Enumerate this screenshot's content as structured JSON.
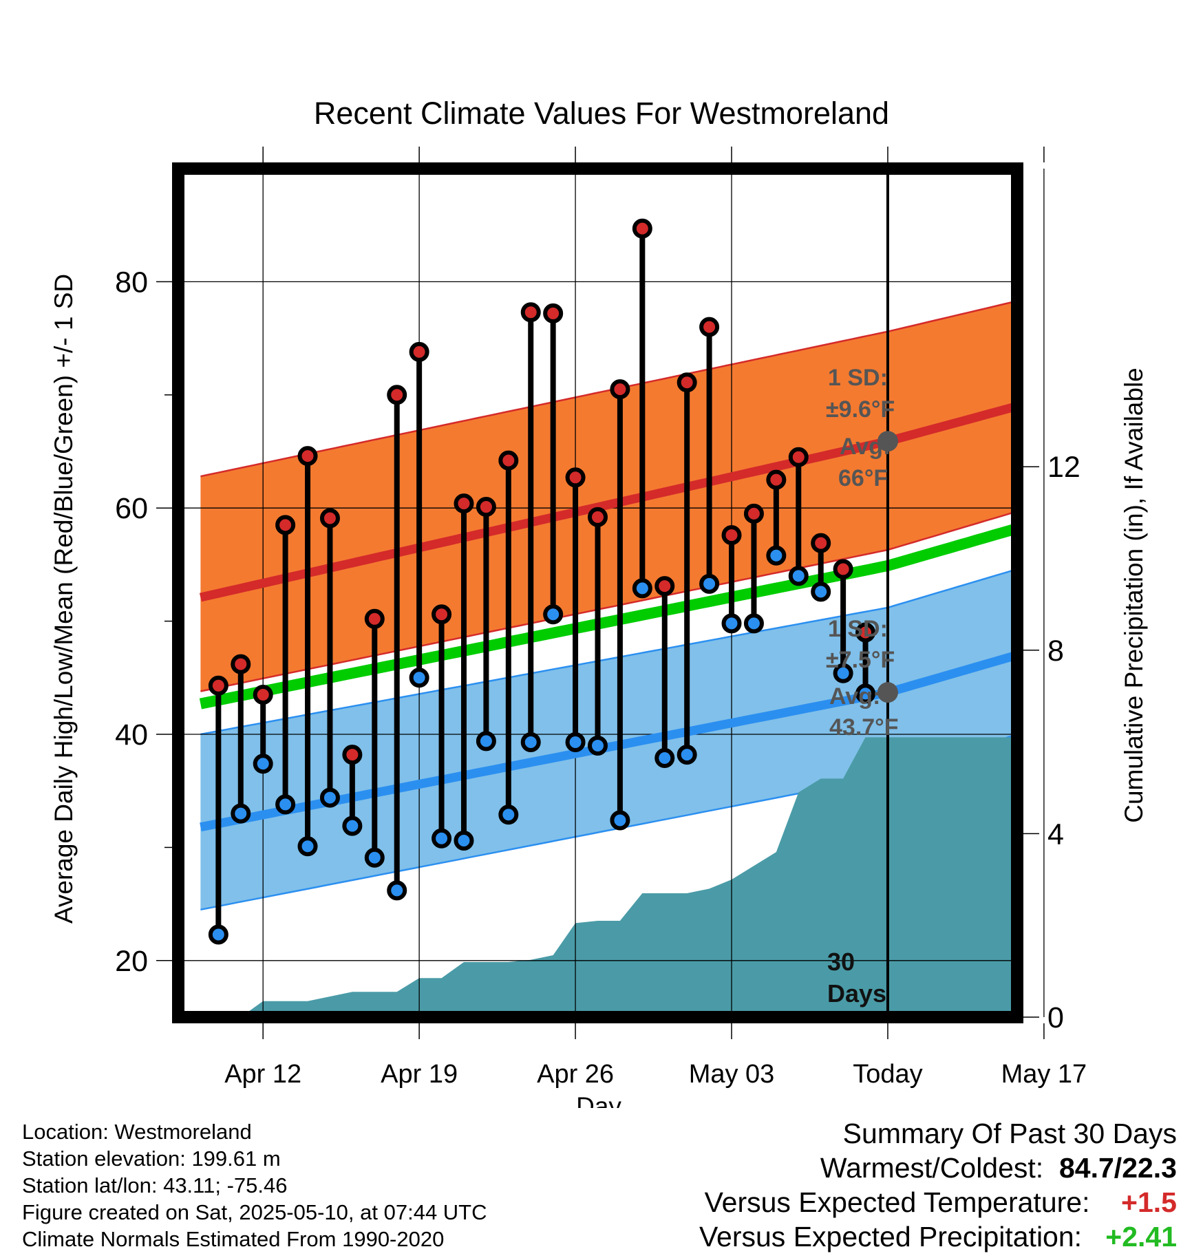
{
  "chart_data": {
    "type": "line",
    "title": "Recent Climate Values For Westmoreland",
    "xlabel": "Day",
    "ylabel": "Average Daily High/Low/Mean (Red/Blue/Green) +/- 1 SD",
    "y2label": "Cumulative Precipitation (in), If Available",
    "ylim": [
      15,
      90
    ],
    "y2lim": [
      0,
      18.5
    ],
    "yticks": [
      20,
      40,
      60,
      80
    ],
    "y2ticks": [
      0,
      4,
      8,
      12
    ],
    "xlim": [
      -3.8,
      33.8
    ],
    "xticks": [
      {
        "label": "Apr 12",
        "day": 0
      },
      {
        "label": "Apr 19",
        "day": 7
      },
      {
        "label": "Apr 26",
        "day": 14
      },
      {
        "label": "May 03",
        "day": 21
      },
      {
        "label": "Today",
        "day": 28
      },
      {
        "label": "May 17",
        "day": 35
      }
    ],
    "grid": true,
    "normals": {
      "high_mean": [
        [
          -2.8,
          52.1
        ],
        [
          28,
          65.9
        ],
        [
          33.8,
          69.0
        ]
      ],
      "high_upper": [
        [
          -2.8,
          62.8
        ],
        [
          28,
          75.6
        ],
        [
          33.8,
          78.3
        ]
      ],
      "high_lower": [
        [
          -2.8,
          43.8
        ],
        [
          28,
          56.3
        ],
        [
          33.8,
          59.7
        ]
      ],
      "low_mean": [
        [
          -2.8,
          31.8
        ],
        [
          28,
          43.7
        ],
        [
          33.8,
          47.0
        ]
      ],
      "low_upper": [
        [
          -2.8,
          40.0
        ],
        [
          28,
          51.2
        ],
        [
          33.8,
          54.6
        ]
      ],
      "low_lower": [
        [
          -2.8,
          24.5
        ],
        [
          28,
          36.3
        ],
        [
          33.8,
          40.0
        ]
      ],
      "mean_line": [
        [
          -2.8,
          42.7
        ],
        [
          28,
          54.9
        ],
        [
          33.8,
          58.2
        ]
      ]
    },
    "daily": {
      "days": [
        -2,
        -1,
        0,
        1,
        2,
        3,
        4,
        5,
        6,
        7,
        8,
        9,
        10,
        11,
        12,
        13,
        14,
        15,
        16,
        17,
        18,
        19,
        20,
        21,
        22,
        23,
        24,
        25,
        26,
        27
      ],
      "highs": [
        44.3,
        46.2,
        43.5,
        58.5,
        64.6,
        59.1,
        38.2,
        50.2,
        70.0,
        73.8,
        50.6,
        60.4,
        60.1,
        64.2,
        77.3,
        77.2,
        62.7,
        59.2,
        70.5,
        84.7,
        53.1,
        71.1,
        76.0,
        57.6,
        59.5,
        62.5,
        64.5,
        56.9,
        54.6,
        49.0
      ],
      "lows": [
        22.3,
        33.0,
        37.4,
        33.8,
        30.1,
        34.4,
        31.9,
        29.1,
        26.2,
        45.0,
        30.8,
        30.6,
        39.4,
        32.9,
        39.3,
        50.6,
        39.3,
        39.0,
        32.4,
        52.9,
        37.9,
        38.2,
        53.3,
        49.8,
        49.8,
        55.8,
        54.0,
        52.6,
        45.4,
        43.6
      ]
    },
    "precip_cumulative": [
      [
        -2.8,
        0
      ],
      [
        -1,
        0
      ],
      [
        0,
        0.35
      ],
      [
        2,
        0.35
      ],
      [
        4,
        0.55
      ],
      [
        6,
        0.55
      ],
      [
        7,
        0.85
      ],
      [
        8,
        0.85
      ],
      [
        9,
        1.2
      ],
      [
        11,
        1.2
      ],
      [
        12,
        1.25
      ],
      [
        13,
        1.35
      ],
      [
        14,
        2.05
      ],
      [
        15,
        2.1
      ],
      [
        16,
        2.1
      ],
      [
        17,
        2.7
      ],
      [
        19,
        2.7
      ],
      [
        20,
        2.8
      ],
      [
        21,
        3.0
      ],
      [
        22,
        3.3
      ],
      [
        23,
        3.6
      ],
      [
        24,
        4.9
      ],
      [
        25,
        5.2
      ],
      [
        26,
        5.2
      ],
      [
        27,
        6.1
      ],
      [
        33.8,
        6.1
      ]
    ],
    "annotations": {
      "high_sd": "1 SD:",
      "high_sd_value": "±9.6°F",
      "high_avg": "Avg:",
      "high_avg_value": "66°F",
      "low_sd": "1 SD:",
      "low_sd_value": "±7.5°F",
      "low_avg": "Avg:",
      "low_avg_value": "43.7°F",
      "window_line1": "30",
      "window_line2": "Days"
    },
    "colors": {
      "high": "#d42a2a",
      "high_band": "#f47a30",
      "low": "#2b8ff0",
      "low_band": "#80c0ea",
      "mean": "#00cc00",
      "precip": "#4a9ba7",
      "annotation": "#555555"
    }
  },
  "meta": {
    "location": "Location: Westmoreland",
    "elevation": "Station elevation: 199.61 m",
    "latlon": "Station lat/lon: 43.11; -75.46",
    "created": "Figure created on Sat, 2025-05-10, at 07:44 UTC",
    "normals": "Climate Normals Estimated From 1990-2020"
  },
  "summary": {
    "header": "Summary Of Past 30 Days",
    "warm_cold_label": "Warmest/Coldest:",
    "warm_cold_value": "84.7/22.3",
    "temp_label": "Versus Expected Temperature:",
    "temp_value": "+1.5",
    "precip_label": "Versus Expected Precipitation:",
    "precip_value": "+2.41",
    "temp_color": "#d42a2a",
    "precip_color": "#22bb22"
  }
}
